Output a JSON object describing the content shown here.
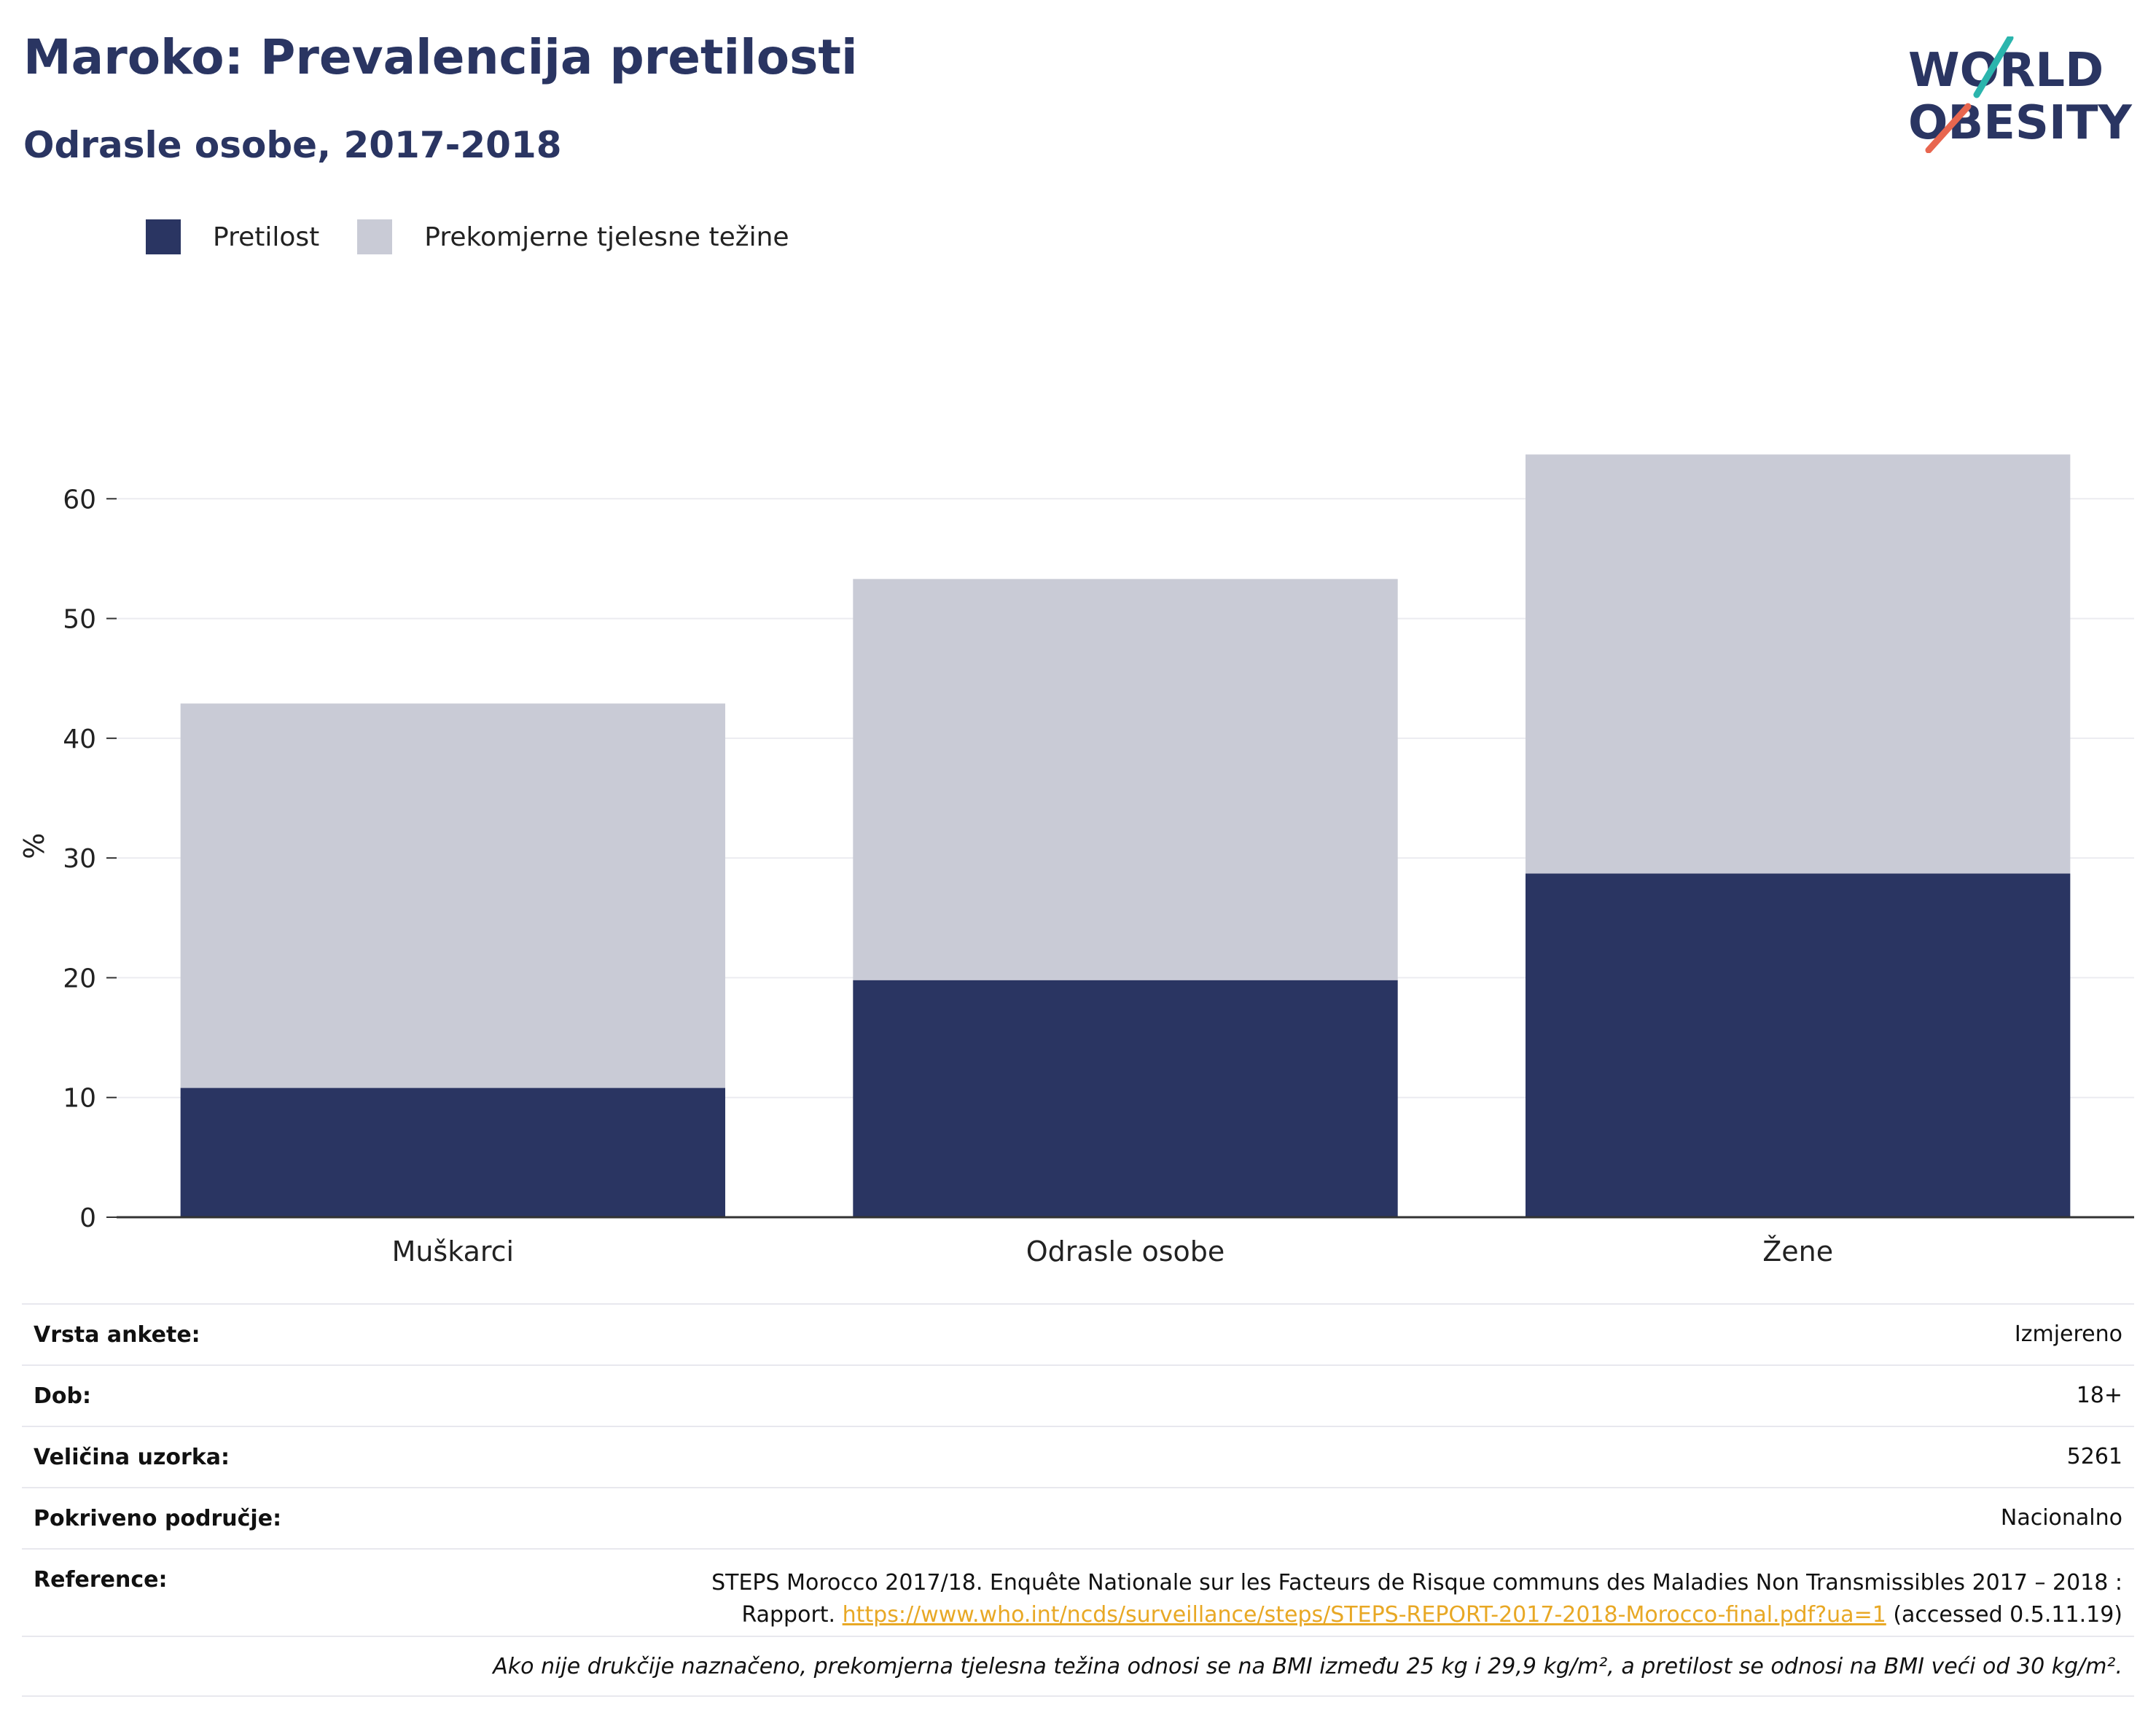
{
  "header": {
    "title": "Maroko: Prevalencija pretilosti",
    "subtitle": "Odrasle osobe, 2017-2018"
  },
  "logo": {
    "line1": "WORLD",
    "line2": "OBESITY",
    "colors": [
      "#2a3562",
      "#2bb5ad",
      "#e8664f"
    ]
  },
  "chart_data": {
    "type": "bar",
    "stacked": true,
    "categories": [
      "Muškarci",
      "Odrasle osobe",
      "Žene"
    ],
    "series": [
      {
        "name": "Pretilost",
        "values": [
          10.8,
          19.8,
          28.7
        ],
        "color": "#2a3562"
      },
      {
        "name": "Prekomjerne tjelesne težine",
        "values": [
          32.1,
          33.5,
          35.0
        ],
        "color": "#c9cbd6"
      }
    ],
    "ylabel": "%",
    "ylim": [
      0,
      70
    ],
    "yticks": [
      0,
      10,
      20,
      30,
      40,
      50,
      60
    ],
    "grid": true,
    "legend_position": "top-left"
  },
  "info": {
    "rows": [
      {
        "key": "Vrsta ankete:",
        "value": "Izmjereno"
      },
      {
        "key": "Dob:",
        "value": "18+"
      },
      {
        "key": "Veličina uzorka:",
        "value": "5261"
      },
      {
        "key": "Pokriveno područje:",
        "value": "Nacionalno"
      }
    ],
    "reference": {
      "key": "Reference:",
      "line1": "STEPS Morocco 2017/18. Enquête Nationale sur les Facteurs de Risque communs des Maladies Non Transmissibles 2017 – 2018 :",
      "line2_prefix": "Rapport. ",
      "link": "https://www.who.int/ncds/surveillance/steps/STEPS-REPORT-2017-2018-Morocco-final.pdf?ua=1",
      "line2_suffix": " (accessed 0.5.11.19)"
    },
    "note": "Ako nije drukčije naznačeno, prekomjerna tjelesna težina odnosi se na BMI između 25 kg i 29,9 kg/m², a pretilost se odnosi na BMI veći od 30 kg/m²."
  }
}
